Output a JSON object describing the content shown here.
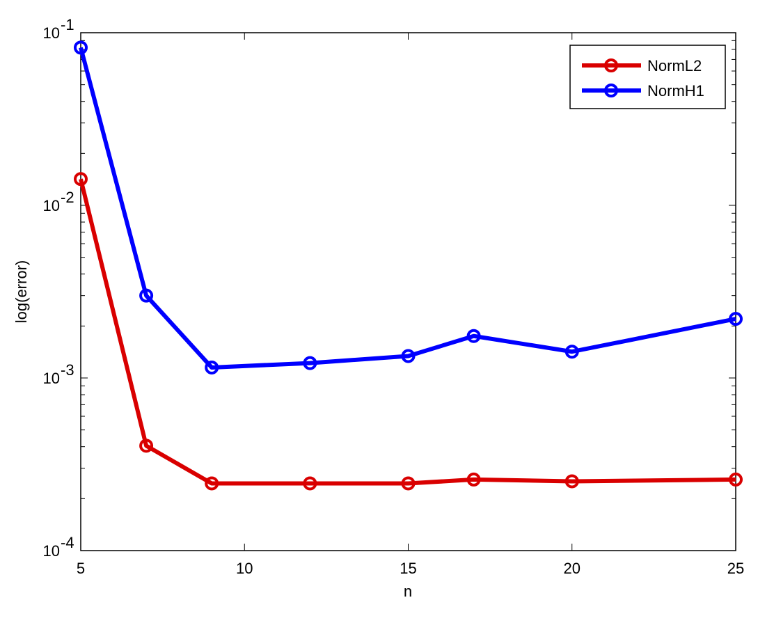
{
  "chart_data": {
    "type": "line",
    "xlabel": "n",
    "ylabel": "log(error)",
    "xlim": [
      5,
      25
    ],
    "ylim": [
      0.0001,
      0.1
    ],
    "yscale": "log",
    "xticks": [
      5,
      10,
      15,
      20,
      25
    ],
    "yticks": [
      {
        "value": 0.0001,
        "base": "10",
        "exp": "-4"
      },
      {
        "value": 0.001,
        "base": "10",
        "exp": "-3"
      },
      {
        "value": 0.01,
        "base": "10",
        "exp": "-2"
      },
      {
        "value": 0.1,
        "base": "10",
        "exp": "-1"
      }
    ],
    "grid": false,
    "legend_position": "top-right",
    "x": [
      5,
      7,
      9,
      12,
      15,
      17,
      20,
      25
    ],
    "series": [
      {
        "name": "NormL2",
        "color": "#d90000",
        "marker": "circle",
        "values": [
          0.0142,
          0.000405,
          0.000245,
          0.000245,
          0.000245,
          0.000258,
          0.000252,
          0.000258
        ]
      },
      {
        "name": "NormH1",
        "color": "#0000ff",
        "marker": "circle",
        "values": [
          0.082,
          0.003,
          0.00115,
          0.00122,
          0.00134,
          0.00175,
          0.00142,
          0.0022
        ]
      }
    ]
  }
}
